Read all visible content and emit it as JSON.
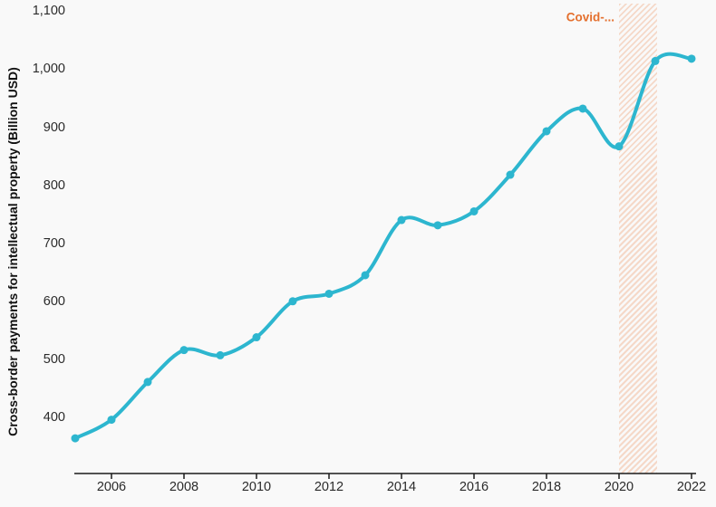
{
  "chart_data": {
    "type": "line",
    "title": "",
    "xlabel": "",
    "ylabel": "Cross-border payments for intellectual property (Billion USD)",
    "x": [
      2005,
      2006,
      2007,
      2008,
      2009,
      2010,
      2011,
      2012,
      2013,
      2014,
      2015,
      2016,
      2017,
      2018,
      2019,
      2020,
      2021,
      2022
    ],
    "values": [
      364,
      396,
      461,
      516,
      507,
      538,
      600,
      613,
      645,
      740,
      731,
      755,
      818,
      893,
      932,
      867,
      1014,
      1018
    ],
    "xlim": [
      2005,
      2022
    ],
    "ylim": [
      305,
      1110
    ],
    "grid": false,
    "legend": false,
    "y_ticks": [
      {
        "value": 400,
        "label": "400"
      },
      {
        "value": 500,
        "label": "500"
      },
      {
        "value": 600,
        "label": "600"
      },
      {
        "value": 700,
        "label": "700"
      },
      {
        "value": 800,
        "label": "800"
      },
      {
        "value": 900,
        "label": "900"
      },
      {
        "value": 1000,
        "label": "1,000"
      },
      {
        "value": 1100,
        "label": "1,100"
      }
    ],
    "x_ticks": [
      {
        "value": 2006,
        "label": "2006"
      },
      {
        "value": 2008,
        "label": "2008"
      },
      {
        "value": 2010,
        "label": "2010"
      },
      {
        "value": 2012,
        "label": "2012"
      },
      {
        "value": 2014,
        "label": "2014"
      },
      {
        "value": 2016,
        "label": "2016"
      },
      {
        "value": 2018,
        "label": "2018"
      },
      {
        "value": 2020,
        "label": "2020"
      },
      {
        "value": 2022,
        "label": "2022"
      }
    ],
    "annotation": {
      "label": "Covid-...",
      "from_year": 2020,
      "to_year": 2021,
      "label_color": "#e4702e",
      "band_color": "#e97c3e"
    },
    "colors": {
      "line": "#2db6cf",
      "marker": "#2db6cf",
      "axis": "#1a1a1a",
      "tick_text": "#2b2b2b",
      "background": "#f9f9f9"
    }
  }
}
